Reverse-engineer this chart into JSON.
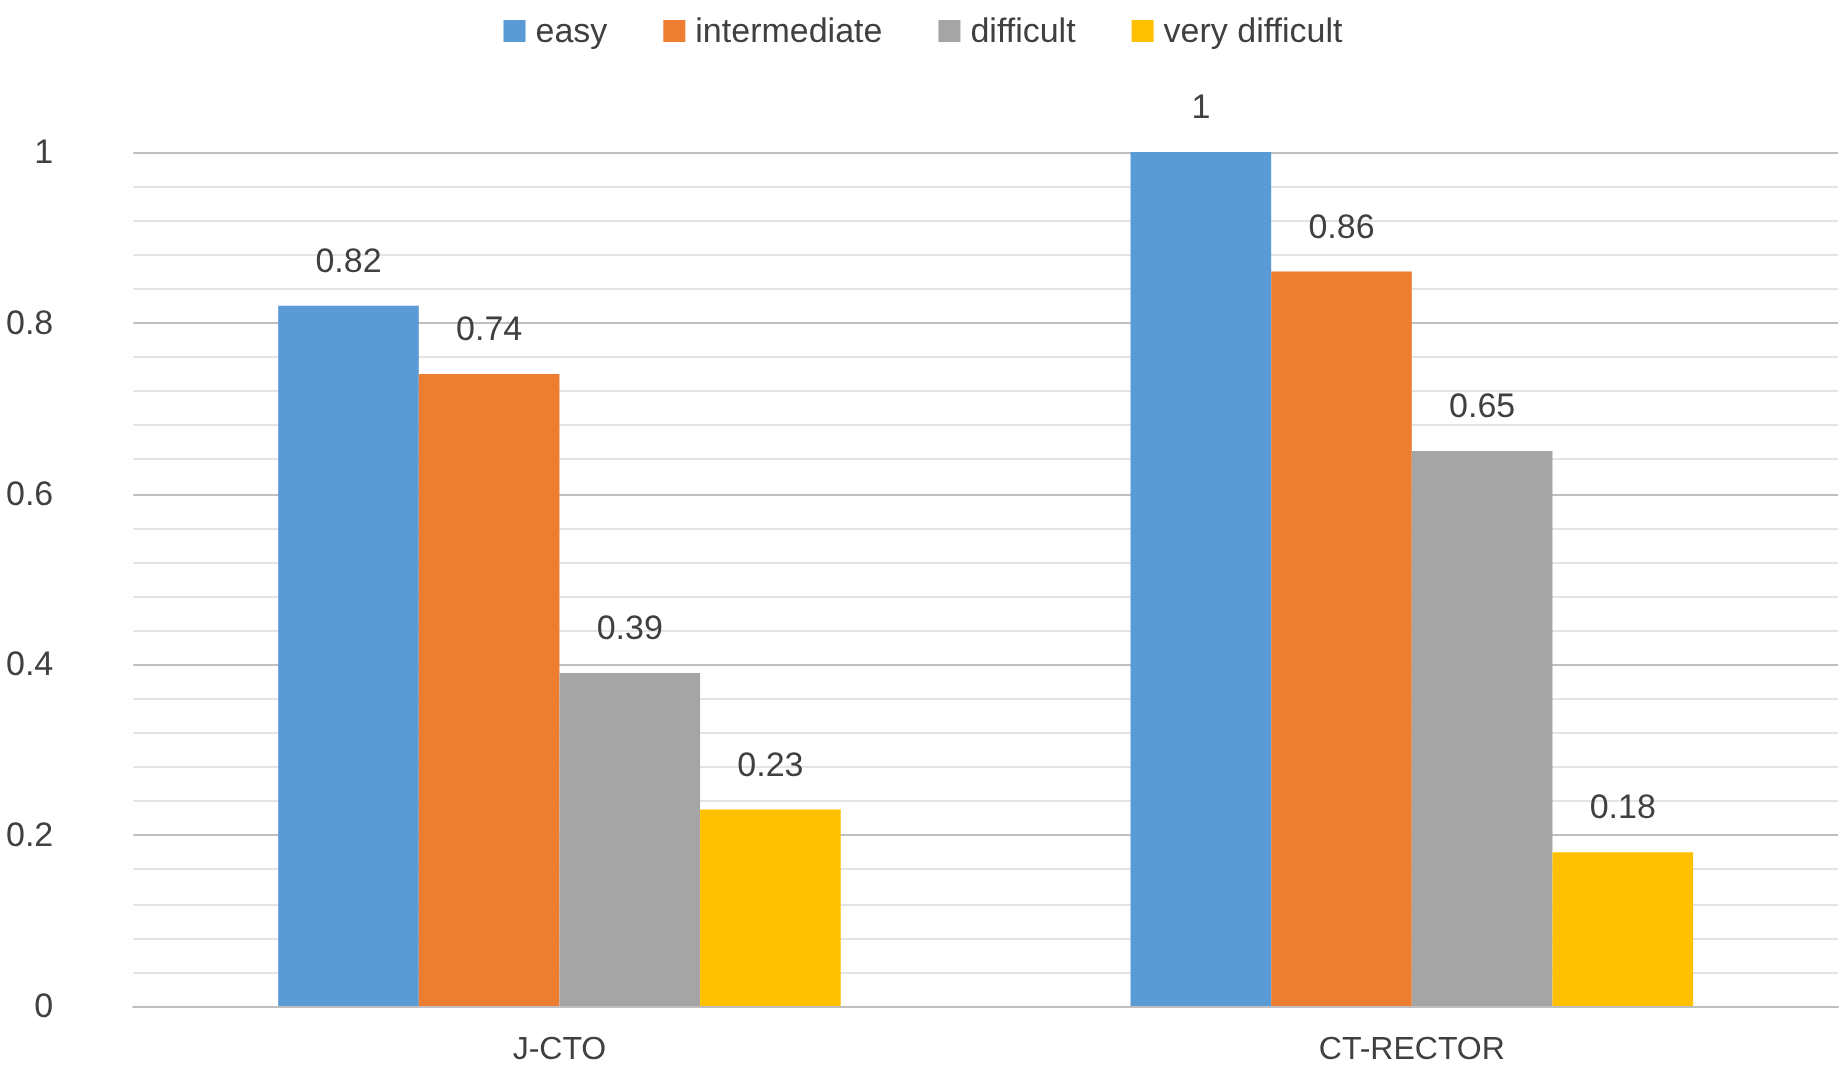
{
  "chart_data": {
    "type": "bar",
    "categories": [
      "J-CTO",
      "CT-RECTOR"
    ],
    "series": [
      {
        "name": "easy",
        "color": "#5b9bd5",
        "values": [
          0.82,
          1
        ]
      },
      {
        "name": "intermediate",
        "color": "#ed7d31",
        "values": [
          0.74,
          0.86
        ]
      },
      {
        "name": "difficult",
        "color": "#a5a5a5",
        "values": [
          0.39,
          0.65
        ]
      },
      {
        "name": "very difficult",
        "color": "#ffc000",
        "values": [
          0.23,
          0.18
        ]
      }
    ],
    "ylim": [
      0,
      1
    ],
    "yticks": [
      0,
      0.2,
      0.4,
      0.6,
      0.8,
      1
    ],
    "grid": true,
    "legend": "top",
    "data_labels": true
  }
}
